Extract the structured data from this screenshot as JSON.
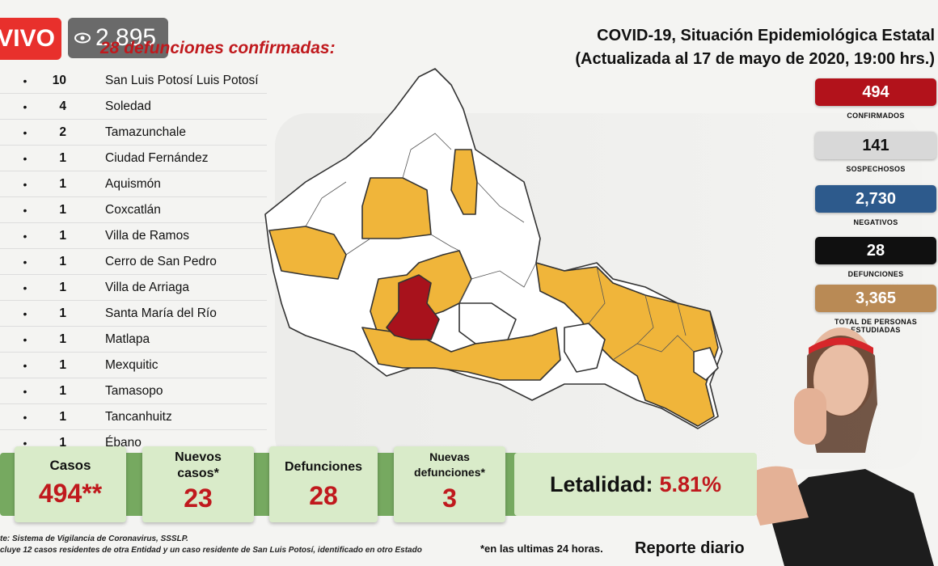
{
  "stream": {
    "live_label": "VIVO",
    "viewers": "2,895"
  },
  "header": {
    "title_line1": "COVID-19, Situación Epidemiológica Estatal",
    "title_line2": "(Actualizada al 17 de mayo de 2020, 19:00 hrs.)"
  },
  "deaths_list": {
    "title": "28 defunciones confirmadas:",
    "items": [
      {
        "count": "10",
        "name": "San Luis Potosí Luis Potosí"
      },
      {
        "count": "4",
        "name": "Soledad"
      },
      {
        "count": "2",
        "name": "Tamazunchale"
      },
      {
        "count": "1",
        "name": "Ciudad Fernández"
      },
      {
        "count": "1",
        "name": "Aquismón"
      },
      {
        "count": "1",
        "name": "Coxcatlán"
      },
      {
        "count": "1",
        "name": "Villa de Ramos"
      },
      {
        "count": "1",
        "name": "Cerro de San Pedro"
      },
      {
        "count": "1",
        "name": "Villa de Arriaga"
      },
      {
        "count": "1",
        "name": "Santa María del Río"
      },
      {
        "count": "1",
        "name": "Matlapa"
      },
      {
        "count": "1",
        "name": "Mexquitic"
      },
      {
        "count": "1",
        "name": "Tamasopo"
      },
      {
        "count": "1",
        "name": "Tancanhuitz"
      },
      {
        "count": "1",
        "name": "Ébano"
      }
    ]
  },
  "stats": [
    {
      "value": "494",
      "label": "CONFIRMADOS",
      "color": "#b2121b",
      "text_color": "#ffffff"
    },
    {
      "value": "141",
      "label": "SOSPECHOSOS",
      "color": "#d8d8d8",
      "text_color": "#111111"
    },
    {
      "value": "2,730",
      "label": "NEGATIVOS",
      "color": "#2d5a8c",
      "text_color": "#ffffff"
    },
    {
      "value": "28",
      "label": "DEFUNCIONES",
      "color": "#101010",
      "text_color": "#ffffff"
    },
    {
      "value": "3,365",
      "label": "TOTAL DE PERSONAS ESTUDIADAS",
      "color": "#b98a55",
      "text_color": "#ffffff"
    }
  ],
  "summary": {
    "casos_label": "Casos",
    "casos_value": "494**",
    "nuevos_label": "Nuevos casos*",
    "nuevos_value": "23",
    "defunciones_label": "Defunciones",
    "defunciones_value": "28",
    "nuevas_def_label": "Nuevas defunciones*",
    "nuevas_def_value": "3",
    "letalidad_label": "Letalidad:",
    "letalidad_value": "5.81%"
  },
  "footer": {
    "source": "te: Sistema de Vigilancia de Coronavirus, SSSLP.",
    "source_note": "cluye 12 casos residentes de otra Entidad y un caso residente de San Luis Potosí, identificado en otro Estado",
    "note": "*en las ultimas 24 horas.",
    "report": "Reporte diario"
  },
  "colors": {
    "accent_red": "#c0191d",
    "map_yellow": "#f0b53a",
    "map_red": "#a8121c",
    "band_green": "#76a960"
  }
}
